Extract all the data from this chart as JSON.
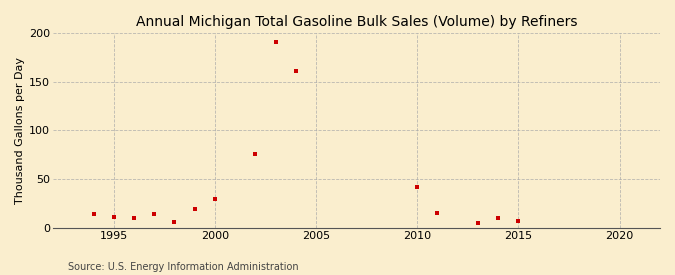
{
  "title": "Annual Michigan Total Gasoline Bulk Sales (Volume) by Refiners",
  "ylabel": "Thousand Gallons per Day",
  "source": "Source: U.S. Energy Information Administration",
  "background_color": "#faeece",
  "marker_color": "#cc0000",
  "years": [
    1994,
    1995,
    1996,
    1997,
    1998,
    1999,
    2000,
    2002,
    2003,
    2004,
    2010,
    2011,
    2013,
    2014,
    2015
  ],
  "values": [
    14,
    11,
    10,
    14,
    6,
    19,
    30,
    76,
    191,
    161,
    42,
    15,
    5,
    10,
    7
  ],
  "xlim": [
    1992,
    2022
  ],
  "ylim": [
    0,
    200
  ],
  "yticks": [
    0,
    50,
    100,
    150,
    200
  ],
  "xticks": [
    1995,
    2000,
    2005,
    2010,
    2015,
    2020
  ],
  "title_fontsize": 10,
  "label_fontsize": 8,
  "tick_fontsize": 8,
  "source_fontsize": 7
}
